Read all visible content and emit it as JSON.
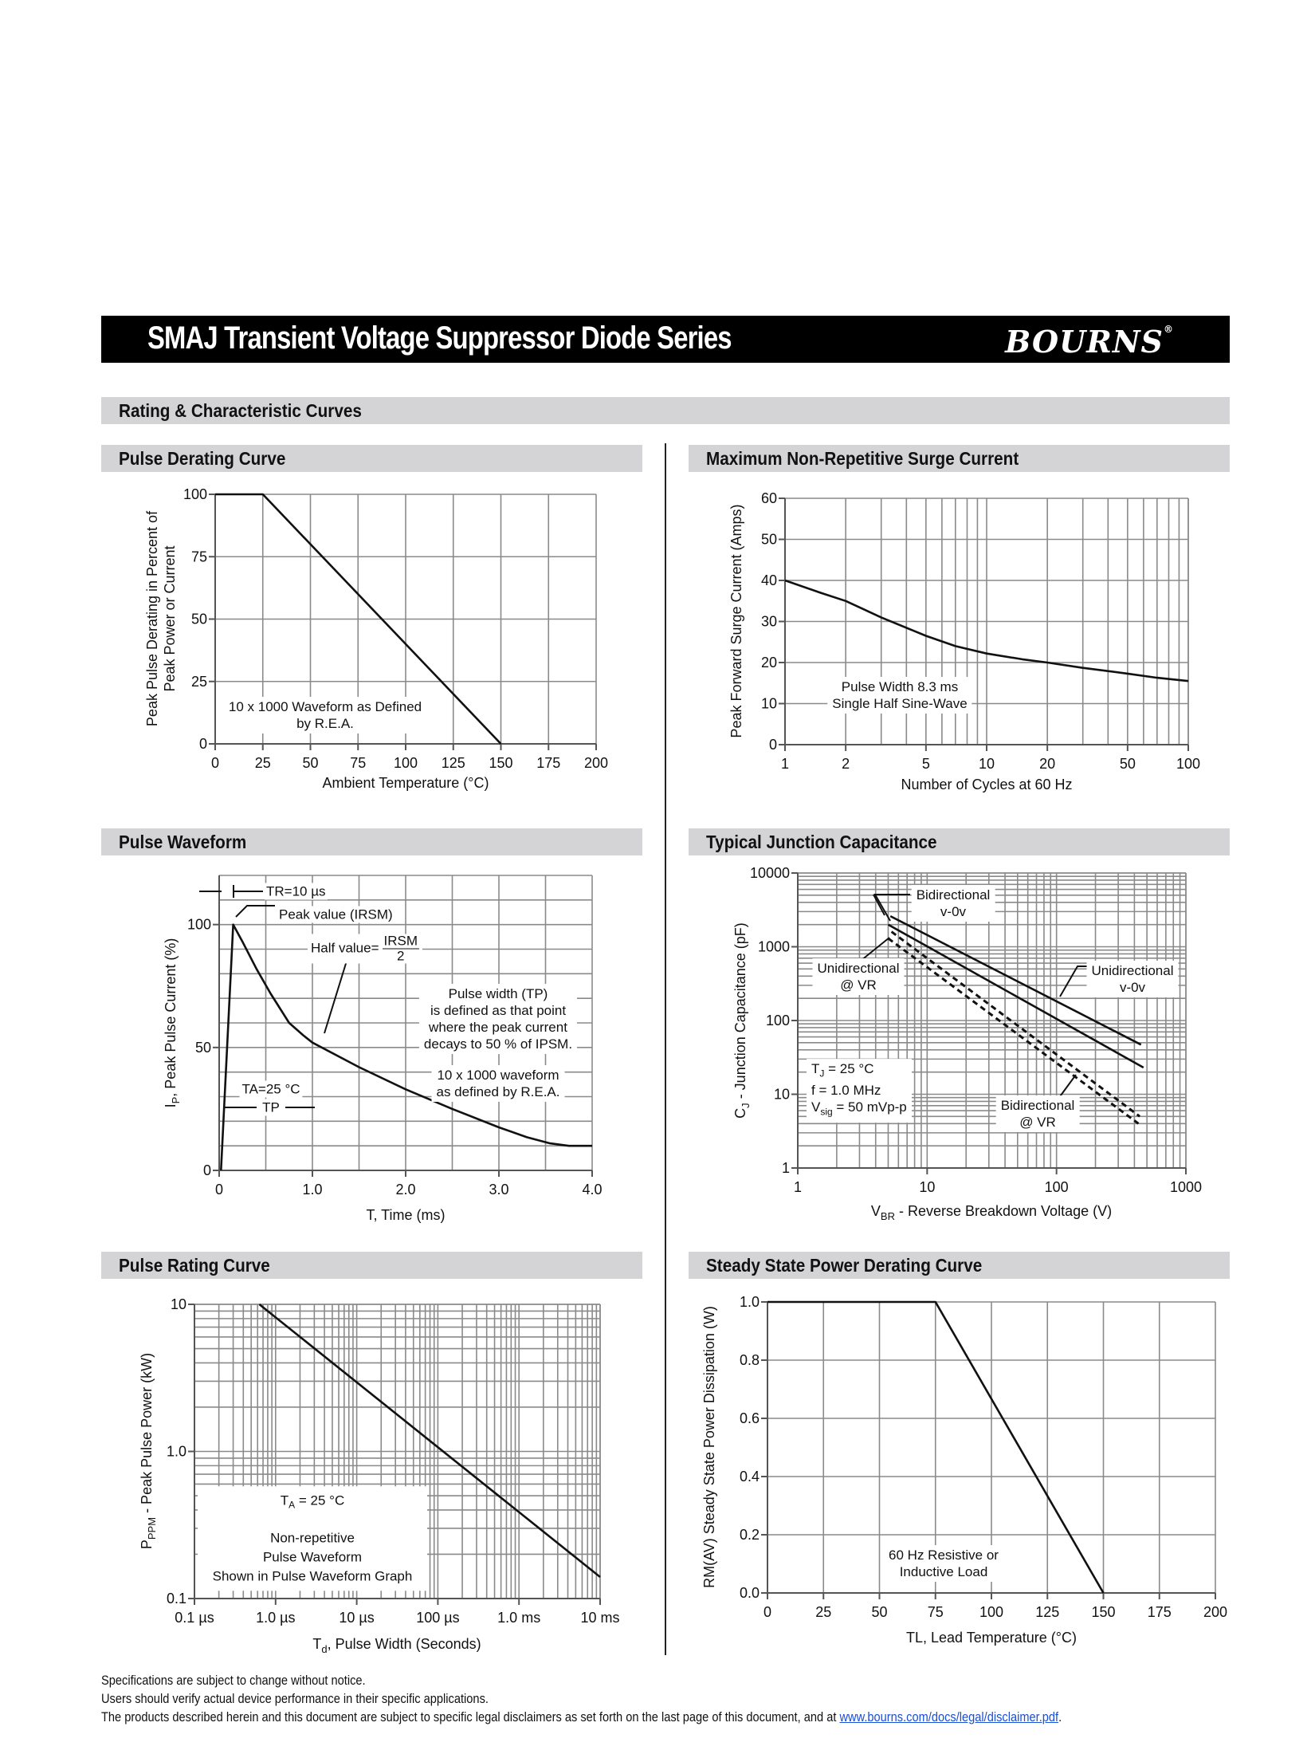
{
  "header": {
    "title": "SMAJ Transient Voltage Suppressor Diode Series",
    "logo": "BOURNS",
    "registered": "®"
  },
  "section_title": "Rating & Characteristic Curves",
  "panels": {
    "pulse_derating": "Pulse Derating Curve",
    "surge_current": "Maximum Non-Repetitive Surge Current",
    "pulse_waveform": "Pulse Waveform",
    "junction_capacitance": "Typical Junction Capacitance",
    "pulse_rating": "Pulse Rating Curve",
    "steady_state": "Steady State Power Derating Curve"
  },
  "annotations": {
    "derating": [
      "10 x 1000 Waveform as Defined",
      "by R.E.A."
    ],
    "surge": [
      "Pulse Width 8.3 ms",
      "Single Half Sine-Wave"
    ],
    "waveform": {
      "tr": "TR=10 µs",
      "peak": "Peak value (IRSM)",
      "half": "Half value=",
      "half_num": "IRSM",
      "half_den": "2",
      "pulse_width": [
        "Pulse width (TP)",
        "is defined as that point",
        "where the peak current",
        "decays to 50 % of IPSM."
      ],
      "waveform_def": [
        "10 x 1000 waveform",
        "as defined by R.E.A."
      ],
      "ta": "TA=25 °C",
      "tp": "TP"
    },
    "capacitance": {
      "bi_0v": [
        "Bidirectional",
        "v-0v"
      ],
      "uni_vr": [
        "Unidirectional",
        "@ VR"
      ],
      "uni_0v": [
        "Unidirectional",
        "v-0v"
      ],
      "bi_vr": [
        "Bidirectional",
        "@ VR"
      ],
      "cond": {
        "tj": "T",
        "tj_sub": "J",
        "tj_val": " = 25 °C",
        "f": "f = 1.0 MHz",
        "vsig": "V",
        "vsig_sub": "sig",
        "vsig_val": " = 50 mVp-p"
      }
    },
    "pulse_rating": {
      "ta": "T",
      "ta_sub": "A",
      "ta_val": " = 25 °C",
      "lines": [
        "Non-repetitive",
        "Pulse Waveform",
        "Shown in Pulse Waveform Graph"
      ]
    },
    "steady": [
      "60 Hz Resistive or",
      "Inductive Load"
    ]
  },
  "chart_data": [
    {
      "id": "pulse_derating",
      "type": "line",
      "title": "Pulse Derating Curve",
      "xlabel": "Ambient Temperature (°C)",
      "ylabel": [
        "Peak Pulse Derating in Percent of",
        "Peak Power or Current"
      ],
      "xscale": "linear",
      "yscale": "linear",
      "xlim": [
        0,
        200
      ],
      "ylim": [
        0,
        100
      ],
      "x_grid_step": 25,
      "y_grid_step": 25,
      "x_ticks": [
        [
          0,
          "0"
        ],
        [
          25,
          "25"
        ],
        [
          50,
          "50"
        ],
        [
          75,
          "75"
        ],
        [
          100,
          "100"
        ],
        [
          125,
          "125"
        ],
        [
          150,
          "150"
        ],
        [
          175,
          "175"
        ],
        [
          200,
          "200"
        ]
      ],
      "y_ticks": [
        [
          0,
          "0"
        ],
        [
          25,
          "25"
        ],
        [
          50,
          "50"
        ],
        [
          75,
          "75"
        ],
        [
          100,
          "100"
        ]
      ],
      "series": [
        {
          "name": "derating",
          "style": "solid",
          "points": [
            [
              0,
              100
            ],
            [
              25,
              100
            ],
            [
              150,
              0
            ]
          ]
        }
      ]
    },
    {
      "id": "surge_current",
      "type": "line",
      "title": "Maximum Non-Repetitive Surge Current",
      "xlabel": "Number of Cycles at 60 Hz",
      "ylabel": [
        "Peak Forward Surge Current (Amps)"
      ],
      "xscale": "log",
      "yscale": "linear",
      "xlim": [
        1,
        100
      ],
      "ylim": [
        0,
        60
      ],
      "y_grid_step": 10,
      "x_ticks": [
        [
          1,
          "1"
        ],
        [
          2,
          "2"
        ],
        [
          5,
          "5"
        ],
        [
          10,
          "10"
        ],
        [
          20,
          "20"
        ],
        [
          50,
          "50"
        ],
        [
          100,
          "100"
        ]
      ],
      "y_ticks": [
        [
          0,
          "0"
        ],
        [
          10,
          "10"
        ],
        [
          20,
          "20"
        ],
        [
          30,
          "30"
        ],
        [
          40,
          "40"
        ],
        [
          50,
          "50"
        ],
        [
          60,
          "60"
        ]
      ],
      "series": [
        {
          "name": "surge",
          "style": "solid",
          "points": [
            [
              1,
              40
            ],
            [
              1.5,
              37
            ],
            [
              2,
              35
            ],
            [
              3,
              31
            ],
            [
              5,
              26.5
            ],
            [
              7,
              24
            ],
            [
              10,
              22.2
            ],
            [
              15,
              20.8
            ],
            [
              20,
              20
            ],
            [
              30,
              18.7
            ],
            [
              50,
              17.3
            ],
            [
              70,
              16.3
            ],
            [
              100,
              15.5
            ]
          ]
        }
      ]
    },
    {
      "id": "pulse_waveform",
      "type": "line",
      "title": "Pulse Waveform",
      "xlabel": "T, Time (ms)",
      "ylabel": [
        "I",
        "P",
        ", Peak Pulse Current (%)"
      ],
      "xscale": "linear",
      "yscale": "linear",
      "xlim": [
        0,
        4
      ],
      "ylim": [
        0,
        120
      ],
      "x_grid_step": 0.5,
      "y_grid_step": 10,
      "x_ticks": [
        [
          0,
          "0"
        ],
        [
          1,
          "1.0"
        ],
        [
          2,
          "2.0"
        ],
        [
          3,
          "3.0"
        ],
        [
          4,
          "4.0"
        ]
      ],
      "y_ticks": [
        [
          0,
          "0"
        ],
        [
          50,
          "50"
        ],
        [
          100,
          "100"
        ]
      ],
      "series": [
        {
          "name": "waveform",
          "style": "solid",
          "points": [
            [
              0.02,
              0
            ],
            [
              0.15,
              100
            ],
            [
              0.25,
              93
            ],
            [
              0.4,
              82
            ],
            [
              0.55,
              72
            ],
            [
              0.65,
              66
            ],
            [
              0.75,
              60
            ],
            [
              0.9,
              55
            ],
            [
              1.0,
              52
            ],
            [
              1.5,
              42
            ],
            [
              2.0,
              33
            ],
            [
              2.5,
              25
            ],
            [
              3.0,
              17.5
            ],
            [
              3.3,
              13.5
            ],
            [
              3.55,
              11
            ],
            [
              3.75,
              10
            ],
            [
              4.0,
              10
            ]
          ]
        }
      ]
    },
    {
      "id": "junction_capacitance",
      "type": "line",
      "title": "Typical Junction Capacitance",
      "xlabel": [
        "V",
        "BR",
        " - Reverse Breakdown Voltage (V)"
      ],
      "ylabel": [
        "C",
        "J",
        " - Junction Capacitance (pF)"
      ],
      "xscale": "log",
      "yscale": "log",
      "xlim": [
        1,
        1000
      ],
      "ylim": [
        1,
        10000
      ],
      "x_ticks": [
        [
          1,
          "1"
        ],
        [
          10,
          "10"
        ],
        [
          100,
          "100"
        ],
        [
          1000,
          "1000"
        ]
      ],
      "y_ticks": [
        [
          1,
          "1"
        ],
        [
          10,
          "10"
        ],
        [
          100,
          "100"
        ],
        [
          1000,
          "1000"
        ],
        [
          10000,
          "10000"
        ]
      ],
      "series": [
        {
          "name": "Unidirectional v-0v",
          "style": "solid",
          "points": [
            [
              5.2,
              2600
            ],
            [
              450,
              47
            ]
          ]
        },
        {
          "name": "Bidirectional v-0v",
          "style": "solid",
          "points": [
            [
              5,
              2000
            ],
            [
              470,
              23
            ]
          ]
        },
        {
          "name": "Unidirectional @ VR",
          "style": "dashed",
          "points": [
            [
              5,
              1300
            ],
            [
              430,
              4
            ]
          ]
        },
        {
          "name": "Bidirectional @ VR",
          "style": "dashed",
          "points": [
            [
              5.3,
              1600
            ],
            [
              440,
              5
            ]
          ]
        }
      ]
    },
    {
      "id": "pulse_rating",
      "type": "line",
      "title": "Pulse Rating Curve",
      "xlabel": [
        "T",
        "d",
        ", Pulse Width (Seconds)"
      ],
      "ylabel": [
        "P",
        "PPM",
        "  - Peak Pulse Power (kW)"
      ],
      "xscale": "log",
      "yscale": "log",
      "xlim": [
        1e-07,
        0.01
      ],
      "ylim": [
        0.1,
        10
      ],
      "x_ticks": [
        [
          1e-07,
          "0.1 µs"
        ],
        [
          1e-06,
          "1.0 µs"
        ],
        [
          1e-05,
          "10 µs"
        ],
        [
          0.0001,
          "100 µs"
        ],
        [
          0.001,
          "1.0 ms"
        ],
        [
          0.01,
          "10 ms"
        ]
      ],
      "y_ticks": [
        [
          0.1,
          "0.1"
        ],
        [
          1,
          "1.0"
        ],
        [
          10,
          "10"
        ]
      ],
      "series": [
        {
          "name": "pulse rating",
          "style": "solid",
          "points": [
            [
              6.3e-07,
              10
            ],
            [
              0.01,
              0.14
            ]
          ]
        }
      ]
    },
    {
      "id": "steady_state",
      "type": "line",
      "title": "Steady State Power Derating Curve",
      "xlabel": "TL, Lead Temperature (°C)",
      "ylabel": [
        "RM(AV) Steady State Power Dissipation (W)"
      ],
      "xscale": "linear",
      "yscale": "linear",
      "xlim": [
        0,
        200
      ],
      "ylim": [
        0,
        1
      ],
      "x_grid_step": 25,
      "y_grid_step": 0.2,
      "x_ticks": [
        [
          0,
          "0"
        ],
        [
          25,
          "25"
        ],
        [
          50,
          "50"
        ],
        [
          75,
          "75"
        ],
        [
          100,
          "100"
        ],
        [
          125,
          "125"
        ],
        [
          150,
          "150"
        ],
        [
          175,
          "175"
        ],
        [
          200,
          "200"
        ]
      ],
      "y_ticks": [
        [
          0,
          "0.0"
        ],
        [
          0.2,
          "0.2"
        ],
        [
          0.4,
          "0.4"
        ],
        [
          0.6,
          "0.6"
        ],
        [
          0.8,
          "0.8"
        ],
        [
          1,
          "1.0"
        ]
      ],
      "series": [
        {
          "name": "steady state",
          "style": "solid",
          "points": [
            [
              0,
              1
            ],
            [
              75,
              1
            ],
            [
              150,
              0
            ]
          ]
        }
      ]
    }
  ],
  "footer": {
    "line1": "Specifications are subject to change without notice.",
    "line2": "Users should verify actual device performance in their specific applications.",
    "line3": "The products described herein and this document are subject to specific legal disclaimers as set forth on the last page of this document, and at ",
    "link": "www.bourns.com/docs/legal/disclaimer.pdf",
    "end": "."
  }
}
